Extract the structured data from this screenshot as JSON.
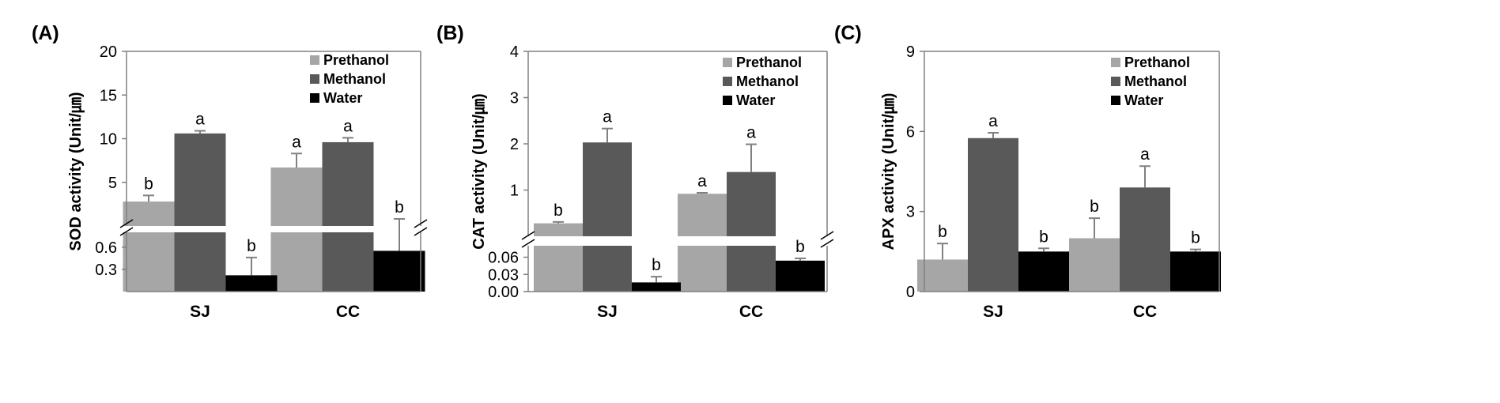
{
  "figure": {
    "series_names": [
      "Prethanol",
      "Methanol",
      "Water"
    ],
    "series_colors": [
      "#a6a6a6",
      "#595959",
      "#000000"
    ]
  },
  "chart_data": [
    {
      "panel_label": "(A)",
      "type": "bar",
      "title": "",
      "ylabel": "SOD activity (Unit/㎛)",
      "xlabel": "",
      "categories": [
        "SJ",
        "CC"
      ],
      "axis_break": true,
      "upper_ylim": [
        0,
        20
      ],
      "upper_ticks": [
        "20",
        "15",
        "10",
        "5"
      ],
      "lower_ylim": [
        0,
        0.8
      ],
      "lower_ticks": [
        "0.6",
        "0.3"
      ],
      "legend_position": "top-right",
      "series": [
        {
          "name": "Prethanol",
          "values": [
            2.8,
            6.7
          ],
          "errors": [
            0.7,
            1.6
          ],
          "letters": [
            "b",
            "a"
          ]
        },
        {
          "name": "Methanol",
          "values": [
            10.6,
            9.6
          ],
          "errors": [
            0.3,
            0.5
          ],
          "letters": [
            "a",
            "a"
          ]
        },
        {
          "name": "Water",
          "values": [
            0.22,
            0.55
          ],
          "errors": [
            0.24,
            0.26
          ],
          "letters": [
            "b",
            "b"
          ]
        }
      ]
    },
    {
      "panel_label": "(B)",
      "type": "bar",
      "title": "",
      "ylabel": "CAT activity (Unit/㎛)",
      "xlabel": "",
      "categories": [
        "SJ",
        "CC"
      ],
      "axis_break": true,
      "upper_ylim": [
        0,
        4
      ],
      "upper_ticks": [
        "4",
        "3",
        "2",
        "1"
      ],
      "lower_ylim": [
        0,
        0.08
      ],
      "lower_ticks": [
        "0.06",
        "0.03",
        "0.00"
      ],
      "legend_position": "top-right",
      "series": [
        {
          "name": "Prethanol",
          "values": [
            0.28,
            0.92
          ],
          "errors": [
            0.03,
            0.02
          ],
          "letters": [
            "b",
            "a"
          ]
        },
        {
          "name": "Methanol",
          "values": [
            2.03,
            1.39
          ],
          "errors": [
            0.3,
            0.6
          ],
          "letters": [
            "a",
            "a"
          ]
        },
        {
          "name": "Water",
          "values": [
            0.016,
            0.054
          ],
          "errors": [
            0.01,
            0.004
          ],
          "letters": [
            "b",
            "b"
          ]
        }
      ]
    },
    {
      "panel_label": "(C)",
      "type": "bar",
      "title": "",
      "ylabel": "APX activity (Unit/㎛)",
      "xlabel": "",
      "categories": [
        "SJ",
        "CC"
      ],
      "axis_break": false,
      "ylim": [
        0,
        9
      ],
      "ticks": [
        "0",
        "3",
        "6",
        "9"
      ],
      "legend_position": "top-right",
      "series": [
        {
          "name": "Prethanol",
          "values": [
            1.2,
            2.0
          ],
          "errors": [
            0.6,
            0.75
          ],
          "letters": [
            "b",
            "b"
          ]
        },
        {
          "name": "Methanol",
          "values": [
            5.75,
            3.9
          ],
          "errors": [
            0.2,
            0.8
          ],
          "letters": [
            "a",
            "a"
          ]
        },
        {
          "name": "Water",
          "values": [
            1.5,
            1.5
          ],
          "errors": [
            0.12,
            0.08
          ],
          "letters": [
            "b",
            "b"
          ]
        }
      ]
    }
  ]
}
